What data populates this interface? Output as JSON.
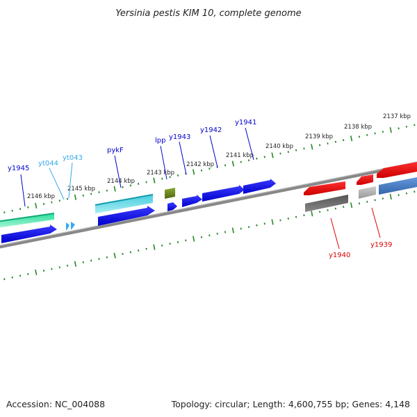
{
  "title": "Yersinia pestis KIM 10, complete genome",
  "footer": {
    "accession": "Accession: NC_004088",
    "summary": "Topology: circular; Length: 4,600,755 bp; Genes: 4,148"
  },
  "kbp_labels": [
    "2137 kbp",
    "2138 kbp",
    "2139 kbp",
    "2140 kbp",
    "2141 kbp",
    "2142 kbp",
    "2143 kbp",
    "2144 kbp",
    "2145 kbp",
    "2146 kbp"
  ],
  "gene_labels": {
    "y1945": "y1945",
    "yt044": "yt044",
    "yt043": "yt043",
    "pykF": "pykF",
    "lpp": "lpp",
    "y1943": "y1943",
    "y1942": "y1942",
    "y1941": "y1941",
    "y1940": "y1940",
    "y1939": "y1939"
  },
  "colors": {
    "forward_gene": "#0000ee",
    "reverse_gene": "#ee0000",
    "trna": "#33bbee",
    "pykF": "#22bbcc",
    "lpp": "#668822",
    "y1945_green": "#22dd99",
    "grey_feature": "#666666",
    "steelblue_feature": "#4477bb",
    "backbone": "#888888",
    "tick": "#228822"
  }
}
